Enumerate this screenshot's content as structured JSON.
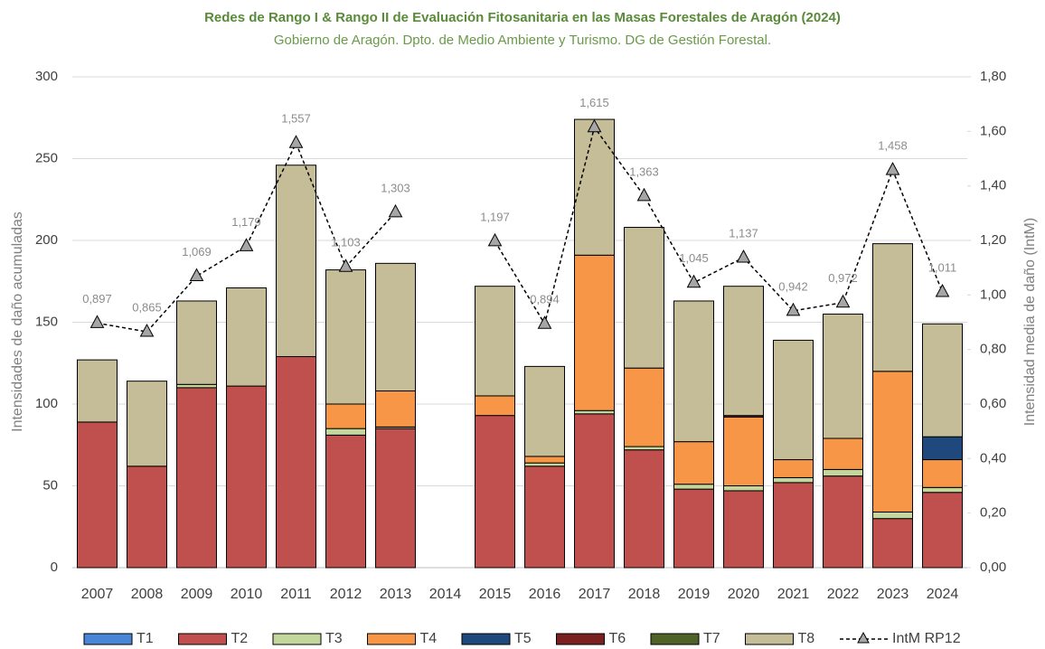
{
  "chart_data": {
    "type": "bar",
    "title": "Redes de Rango I & Rango II de Evaluación Fitosanitaria en las Masas Forestales de Aragón (2024)",
    "subtitle": "Gobierno de Aragón. Dpto. de Medio Ambiente y Turismo. DG de Gestión Forestal.",
    "ylabel": "Intensidades de daño acumuladas",
    "y2label": "Intensidad media de daño (IntM)",
    "categories": [
      "2007",
      "2008",
      "2009",
      "2010",
      "2011",
      "2012",
      "2013",
      "2014",
      "2015",
      "2016",
      "2017",
      "2018",
      "2019",
      "2020",
      "2021",
      "2022",
      "2023",
      "2024"
    ],
    "stacked": true,
    "series": [
      {
        "name": "T1",
        "color": "#4a86d8",
        "values": [
          0,
          0,
          0,
          0,
          0,
          0,
          0,
          null,
          0,
          0,
          0,
          0,
          0,
          0,
          0,
          0,
          0,
          0
        ]
      },
      {
        "name": "T2",
        "color": "#c0504d",
        "values": [
          89,
          62,
          110,
          111,
          129,
          81,
          85,
          null,
          93,
          62,
          94,
          72,
          48,
          47,
          52,
          56,
          30,
          46
        ]
      },
      {
        "name": "T3",
        "color": "#c3d69b",
        "values": [
          0,
          0,
          2,
          0,
          0,
          4,
          1,
          null,
          0,
          2,
          2,
          2,
          3,
          3,
          3,
          4,
          4,
          3
        ]
      },
      {
        "name": "T4",
        "color": "#f79646",
        "values": [
          0,
          0,
          0,
          0,
          0,
          15,
          22,
          null,
          12,
          4,
          95,
          48,
          26,
          42,
          11,
          19,
          86,
          17
        ]
      },
      {
        "name": "T5",
        "color": "#1f497d",
        "values": [
          0,
          0,
          0,
          0,
          0,
          0,
          0,
          null,
          0,
          0,
          0,
          0,
          0,
          0,
          0,
          0,
          0,
          14
        ]
      },
      {
        "name": "T6",
        "color": "#7b2020",
        "values": [
          0,
          0,
          0,
          0,
          0,
          0,
          0,
          null,
          0,
          0,
          0,
          0,
          0,
          1,
          0,
          0,
          0,
          0
        ]
      },
      {
        "name": "T7",
        "color": "#4f6228",
        "values": [
          0,
          0,
          0,
          0,
          0,
          0,
          0,
          null,
          0,
          0,
          0,
          0,
          0,
          0,
          0,
          0,
          0,
          0
        ]
      },
      {
        "name": "T8",
        "color": "#c4bd97",
        "values": [
          38,
          52,
          51,
          60,
          117,
          82,
          78,
          null,
          67,
          55,
          83,
          86,
          86,
          79,
          73,
          76,
          78,
          69
        ]
      },
      {
        "name": "IntM RP12",
        "type": "line",
        "axis": "y2",
        "color": "#000000",
        "marker_color": "#a6a6a6",
        "values": [
          0.897,
          0.865,
          1.069,
          1.179,
          1.557,
          1.103,
          1.303,
          null,
          1.197,
          0.894,
          1.615,
          1.363,
          1.045,
          1.137,
          0.942,
          0.972,
          1.458,
          1.011
        ],
        "value_labels": [
          "0,897",
          "0,865",
          "1,069",
          "1,179",
          "1,557",
          "1,103",
          "1,303",
          null,
          "1,197",
          "0,894",
          "1,615",
          "1,363",
          "1,045",
          "1,137",
          "0,942",
          "0,972",
          "1,458",
          "1,011"
        ]
      }
    ],
    "ylim": [
      0,
      300
    ],
    "yticks": [
      0,
      50,
      100,
      150,
      200,
      250,
      300
    ],
    "y2lim": [
      0,
      1.8
    ],
    "y2ticks": [
      {
        "value": 0,
        "label": "0,00"
      },
      {
        "value": 0.2,
        "label": "0,20"
      },
      {
        "value": 0.4,
        "label": "0,40"
      },
      {
        "value": 0.6,
        "label": "0,60"
      },
      {
        "value": 0.8,
        "label": "0,80"
      },
      {
        "value": 1.0,
        "label": "1,00"
      },
      {
        "value": 1.2,
        "label": "1,20"
      },
      {
        "value": 1.4,
        "label": "1,40"
      },
      {
        "value": 1.6,
        "label": "1,60"
      },
      {
        "value": 1.8,
        "label": "1,80"
      }
    ],
    "grid": true,
    "legend": "bottom"
  }
}
